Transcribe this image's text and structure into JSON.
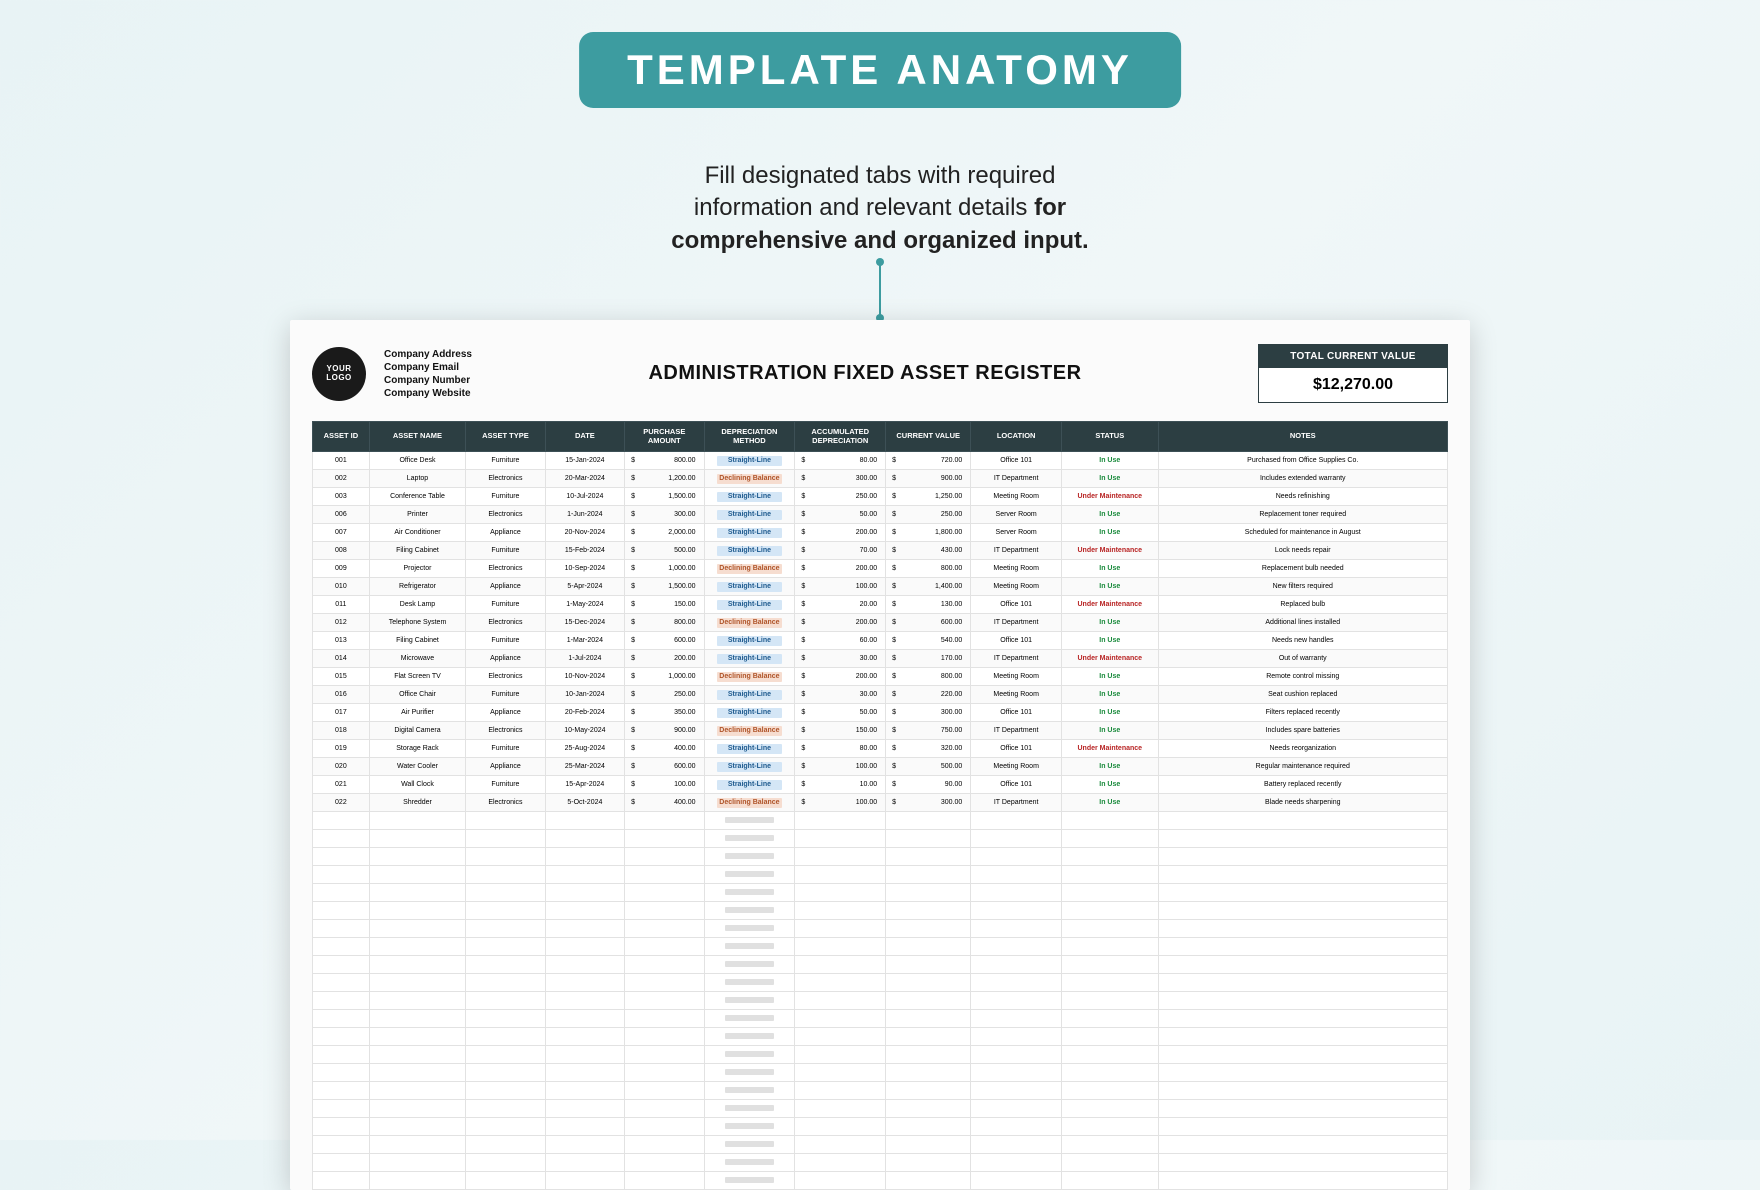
{
  "colors": {
    "accent": "#3d9ca0",
    "headerDark": "#2c3e42",
    "pillBlueBg": "#d4e6f6",
    "pillBlueFg": "#1e5a8e",
    "pillOrangeBg": "#f6ddd0",
    "pillOrangeFg": "#b0552a",
    "statusUse": "#1a8a3c",
    "statusMaint": "#b82424"
  },
  "pageTitle": "TEMPLATE ANATOMY",
  "description": {
    "line1": "Fill designated tabs with required",
    "line2": "information and relevant details ",
    "line2bold": "for",
    "line3bold": "comprehensive and organized input."
  },
  "logo": {
    "line1": "YOUR",
    "line2": "LOGO"
  },
  "company": {
    "address": "Company Address",
    "email": "Company Email",
    "number": "Company Number",
    "website": "Company Website"
  },
  "mainTitle": "ADMINISTRATION FIXED ASSET REGISTER",
  "totalBox": {
    "label": "TOTAL CURRENT VALUE",
    "value": "$12,270.00"
  },
  "columns": [
    "ASSET ID",
    "ASSET NAME",
    "ASSET TYPE",
    "DATE",
    "PURCHASE AMOUNT",
    "DEPRECIATION METHOD",
    "ACCUMULATED DEPRECIATION",
    "CURRENT VALUE",
    "LOCATION",
    "STATUS",
    "NOTES"
  ],
  "depMethods": {
    "sl": "Straight-Line",
    "db": "Declining Balance"
  },
  "statuses": {
    "use": "In Use",
    "maint": "Under Maintenance"
  },
  "rows": [
    {
      "id": "001",
      "name": "Office Desk",
      "type": "Furniture",
      "date": "15-Jan-2024",
      "purchase": "800.00",
      "dep": "sl",
      "accum": "80.00",
      "curr": "720.00",
      "loc": "Office 101",
      "status": "use",
      "notes": "Purchased from Office Supplies Co."
    },
    {
      "id": "002",
      "name": "Laptop",
      "type": "Electronics",
      "date": "20-Mar-2024",
      "purchase": "1,200.00",
      "dep": "db",
      "accum": "300.00",
      "curr": "900.00",
      "loc": "IT Department",
      "status": "use",
      "notes": "Includes extended warranty"
    },
    {
      "id": "003",
      "name": "Conference Table",
      "type": "Furniture",
      "date": "10-Jul-2024",
      "purchase": "1,500.00",
      "dep": "sl",
      "accum": "250.00",
      "curr": "1,250.00",
      "loc": "Meeting Room",
      "status": "maint",
      "notes": "Needs refinishing"
    },
    {
      "id": "006",
      "name": "Printer",
      "type": "Electronics",
      "date": "1-Jun-2024",
      "purchase": "300.00",
      "dep": "sl",
      "accum": "50.00",
      "curr": "250.00",
      "loc": "Server Room",
      "status": "use",
      "notes": "Replacement toner required"
    },
    {
      "id": "007",
      "name": "Air Conditioner",
      "type": "Appliance",
      "date": "20-Nov-2024",
      "purchase": "2,000.00",
      "dep": "sl",
      "accum": "200.00",
      "curr": "1,800.00",
      "loc": "Server Room",
      "status": "use",
      "notes": "Scheduled for maintenance in August"
    },
    {
      "id": "008",
      "name": "Filing Cabinet",
      "type": "Furniture",
      "date": "15-Feb-2024",
      "purchase": "500.00",
      "dep": "sl",
      "accum": "70.00",
      "curr": "430.00",
      "loc": "IT Department",
      "status": "maint",
      "notes": "Lock needs repair"
    },
    {
      "id": "009",
      "name": "Projector",
      "type": "Electronics",
      "date": "10-Sep-2024",
      "purchase": "1,000.00",
      "dep": "db",
      "accum": "200.00",
      "curr": "800.00",
      "loc": "Meeting Room",
      "status": "use",
      "notes": "Replacement bulb needed"
    },
    {
      "id": "010",
      "name": "Refrigerator",
      "type": "Appliance",
      "date": "5-Apr-2024",
      "purchase": "1,500.00",
      "dep": "sl",
      "accum": "100.00",
      "curr": "1,400.00",
      "loc": "Meeting Room",
      "status": "use",
      "notes": "New filters required"
    },
    {
      "id": "011",
      "name": "Desk Lamp",
      "type": "Furniture",
      "date": "1-May-2024",
      "purchase": "150.00",
      "dep": "sl",
      "accum": "20.00",
      "curr": "130.00",
      "loc": "Office 101",
      "status": "maint",
      "notes": "Replaced bulb"
    },
    {
      "id": "012",
      "name": "Telephone System",
      "type": "Electronics",
      "date": "15-Dec-2024",
      "purchase": "800.00",
      "dep": "db",
      "accum": "200.00",
      "curr": "600.00",
      "loc": "IT Department",
      "status": "use",
      "notes": "Additional lines installed"
    },
    {
      "id": "013",
      "name": "Filing Cabinet",
      "type": "Furniture",
      "date": "1-Mar-2024",
      "purchase": "600.00",
      "dep": "sl",
      "accum": "60.00",
      "curr": "540.00",
      "loc": "Office 101",
      "status": "use",
      "notes": "Needs new handles"
    },
    {
      "id": "014",
      "name": "Microwave",
      "type": "Appliance",
      "date": "1-Jul-2024",
      "purchase": "200.00",
      "dep": "sl",
      "accum": "30.00",
      "curr": "170.00",
      "loc": "IT Department",
      "status": "maint",
      "notes": "Out of warranty"
    },
    {
      "id": "015",
      "name": "Flat Screen TV",
      "type": "Electronics",
      "date": "10-Nov-2024",
      "purchase": "1,000.00",
      "dep": "db",
      "accum": "200.00",
      "curr": "800.00",
      "loc": "Meeting Room",
      "status": "use",
      "notes": "Remote control missing"
    },
    {
      "id": "016",
      "name": "Office Chair",
      "type": "Furniture",
      "date": "10-Jan-2024",
      "purchase": "250.00",
      "dep": "sl",
      "accum": "30.00",
      "curr": "220.00",
      "loc": "Meeting Room",
      "status": "use",
      "notes": "Seat cushion replaced"
    },
    {
      "id": "017",
      "name": "Air Purifier",
      "type": "Appliance",
      "date": "20-Feb-2024",
      "purchase": "350.00",
      "dep": "sl",
      "accum": "50.00",
      "curr": "300.00",
      "loc": "Office 101",
      "status": "use",
      "notes": "Filters replaced recently"
    },
    {
      "id": "018",
      "name": "Digital Camera",
      "type": "Electronics",
      "date": "10-May-2024",
      "purchase": "900.00",
      "dep": "db",
      "accum": "150.00",
      "curr": "750.00",
      "loc": "IT Department",
      "status": "use",
      "notes": "Includes spare batteries"
    },
    {
      "id": "019",
      "name": "Storage Rack",
      "type": "Furniture",
      "date": "25-Aug-2024",
      "purchase": "400.00",
      "dep": "sl",
      "accum": "80.00",
      "curr": "320.00",
      "loc": "Office 101",
      "status": "maint",
      "notes": "Needs reorganization"
    },
    {
      "id": "020",
      "name": "Water Cooler",
      "type": "Appliance",
      "date": "25-Mar-2024",
      "purchase": "600.00",
      "dep": "sl",
      "accum": "100.00",
      "curr": "500.00",
      "loc": "Meeting Room",
      "status": "use",
      "notes": "Regular maintenance required"
    },
    {
      "id": "021",
      "name": "Wall Clock",
      "type": "Furniture",
      "date": "15-Apr-2024",
      "purchase": "100.00",
      "dep": "sl",
      "accum": "10.00",
      "curr": "90.00",
      "loc": "Office 101",
      "status": "use",
      "notes": "Battery replaced recently"
    },
    {
      "id": "022",
      "name": "Shredder",
      "type": "Electronics",
      "date": "5-Oct-2024",
      "purchase": "400.00",
      "dep": "db",
      "accum": "100.00",
      "curr": "300.00",
      "loc": "IT Department",
      "status": "use",
      "notes": "Blade needs sharpening"
    }
  ],
  "emptyRowCount": 21
}
